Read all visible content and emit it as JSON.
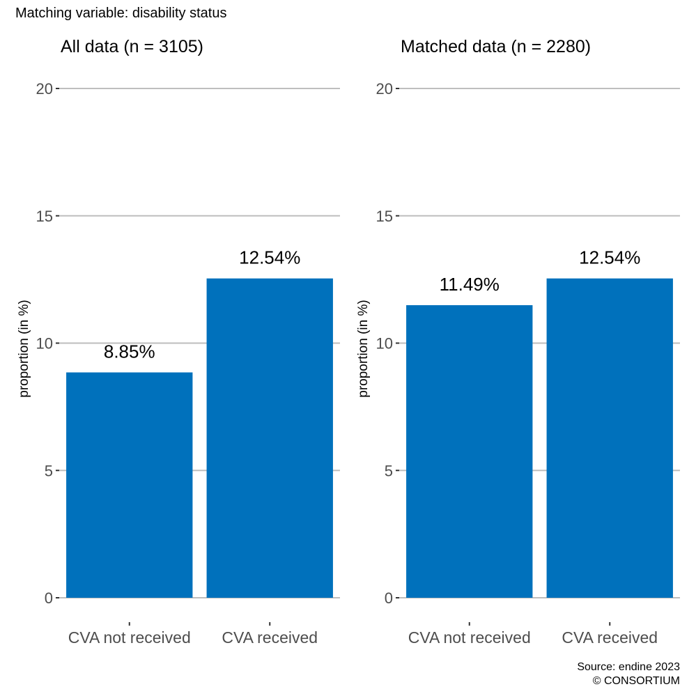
{
  "header": {
    "title": "Matching variable: disability status"
  },
  "footer": {
    "source": "Source: endine 2023",
    "copyright": "© CONSORTIUM"
  },
  "colors": {
    "bar": "#0071bc",
    "grid": "#bebebe",
    "tick_text": "#4d4d4d"
  },
  "chart_data": [
    {
      "type": "bar",
      "title": "All data (n = 3105)",
      "categories": [
        "CVA not received",
        "CVA received"
      ],
      "values": [
        8.85,
        12.54
      ],
      "value_labels": [
        "8.85%",
        "12.54%"
      ],
      "ylabel": "proportion (in %)",
      "ylim": [
        0,
        20
      ],
      "yticks": [
        "0",
        "5",
        "10",
        "15",
        "20"
      ],
      "grid": true
    },
    {
      "type": "bar",
      "title": "Matched data (n = 2280)",
      "categories": [
        "CVA not received",
        "CVA received"
      ],
      "values": [
        11.49,
        12.54
      ],
      "value_labels": [
        "11.49%",
        "12.54%"
      ],
      "ylabel": "proportion (in %)",
      "ylim": [
        0,
        20
      ],
      "yticks": [
        "0",
        "5",
        "10",
        "15",
        "20"
      ],
      "grid": true
    }
  ]
}
